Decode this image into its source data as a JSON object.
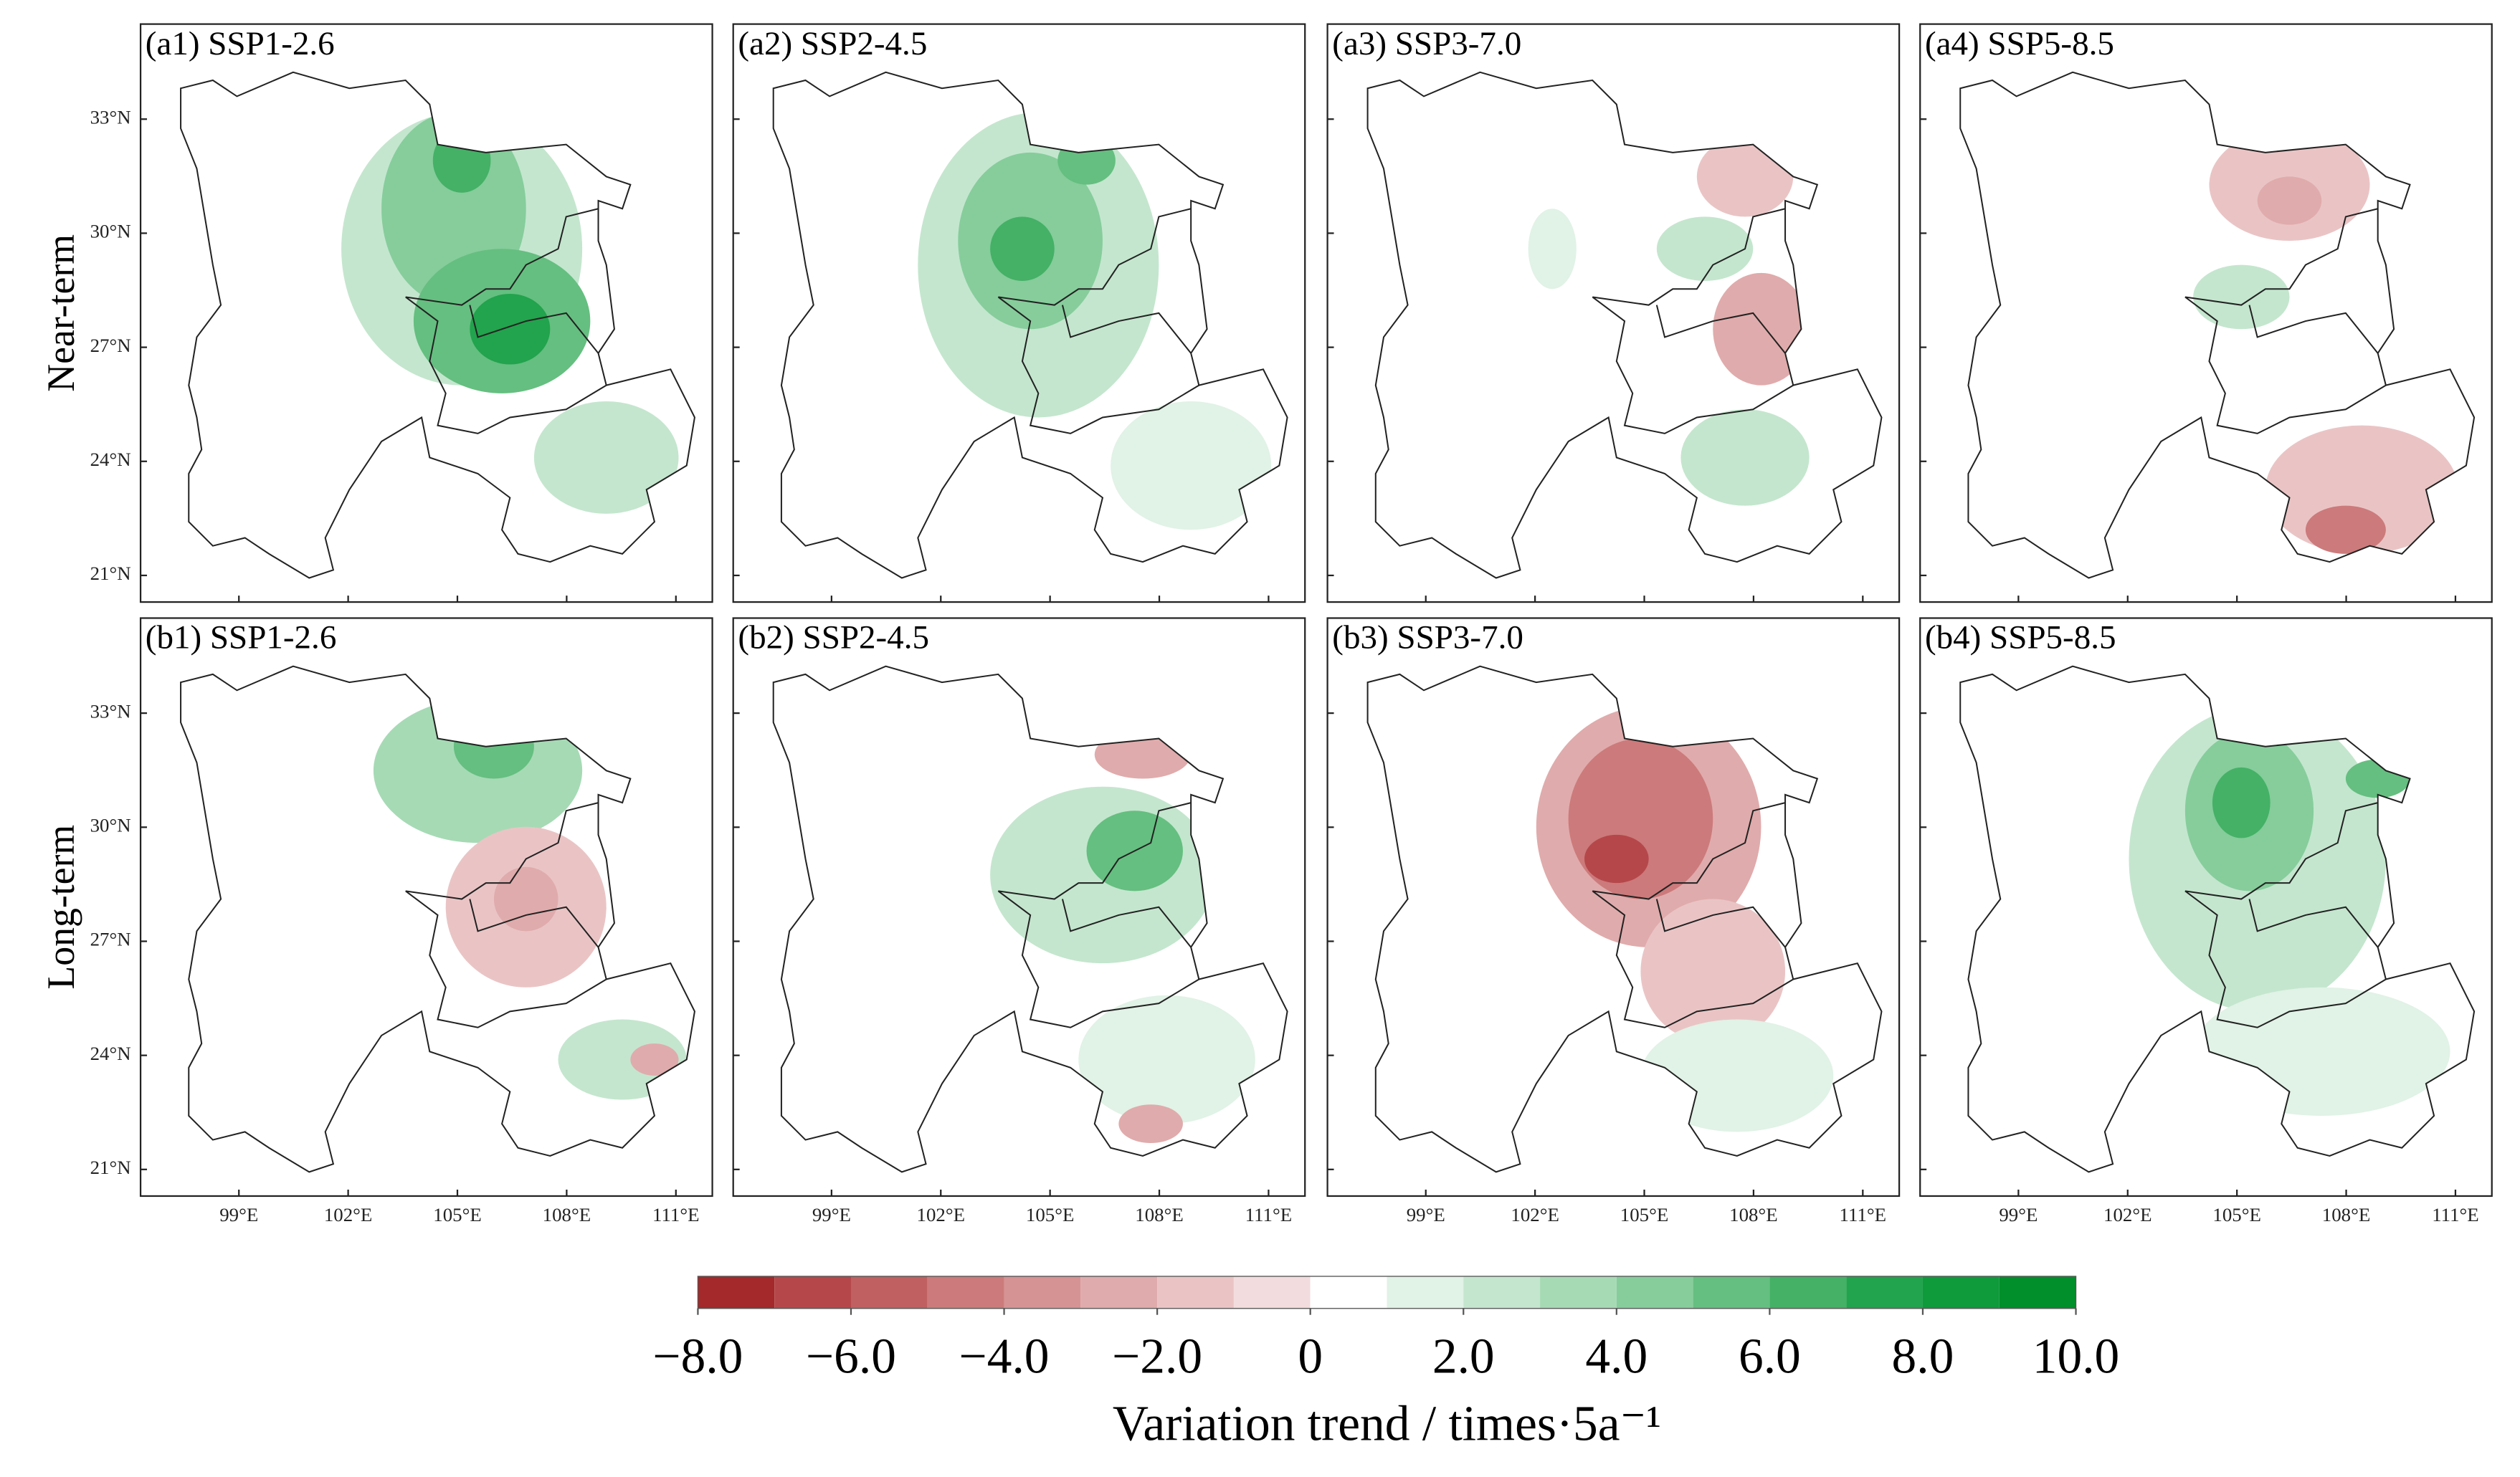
{
  "panels": [
    {
      "label": "(a1) SSP1-2.6"
    },
    {
      "label": "(a2) SSP2-4.5"
    },
    {
      "label": "(a3) SSP3-7.0"
    },
    {
      "label": "(a4) SSP5-8.5"
    },
    {
      "label": "(b1) SSP1-2.6"
    },
    {
      "label": "(b2) SSP2-4.5"
    },
    {
      "label": "(b3) SSP3-7.0"
    },
    {
      "label": "(b4) SSP5-8.5"
    }
  ],
  "row_labels": [
    "Near-term",
    "Long-term"
  ],
  "map_axes": {
    "xlim": [
      96.3,
      112.0
    ],
    "ylim": [
      20.3,
      35.5
    ],
    "xticks": [
      {
        "value": 99,
        "label": "99°E"
      },
      {
        "value": 102,
        "label": "102°E"
      },
      {
        "value": 105,
        "label": "105°E"
      },
      {
        "value": 108,
        "label": "108°E"
      },
      {
        "value": 111,
        "label": "111°E"
      }
    ],
    "yticks": [
      {
        "value": 33,
        "label": "33°N"
      },
      {
        "value": 30,
        "label": "30°N"
      },
      {
        "value": 27,
        "label": "27°N"
      },
      {
        "value": 24,
        "label": "24°N"
      },
      {
        "value": 21,
        "label": "21°N"
      }
    ]
  },
  "colorbar": {
    "bounds": [
      -8,
      -7,
      -6,
      -5,
      -4,
      -3,
      -2,
      -1,
      0,
      1,
      2,
      3,
      4,
      5,
      6,
      7,
      8,
      9,
      10
    ],
    "colors": [
      "#a3292b",
      "#b5474a",
      "#c06061",
      "#cc7a7b",
      "#d69394",
      "#e0abac",
      "#eac4c5",
      "#f3dcdd",
      "#ffffff",
      "#e1f2e6",
      "#c4e6ce",
      "#a6dab5",
      "#86cd9b",
      "#65bf80",
      "#44b166",
      "#22a34d",
      "#0f9a3c",
      "#008f2a"
    ],
    "ticks": [
      {
        "value": -8,
        "label": "−8.0"
      },
      {
        "value": -6,
        "label": "−6.0"
      },
      {
        "value": -4,
        "label": "−4.0"
      },
      {
        "value": -2,
        "label": "−2.0"
      },
      0,
      {
        "value": 2,
        "label": "2.0"
      },
      {
        "value": 4,
        "label": "4.0"
      },
      {
        "value": 6,
        "label": "6.0"
      },
      {
        "value": 8,
        "label": "8.0"
      },
      {
        "value": 10,
        "label": "10.0"
      }
    ],
    "label": "Variation trend / times·5a⁻¹"
  }
}
